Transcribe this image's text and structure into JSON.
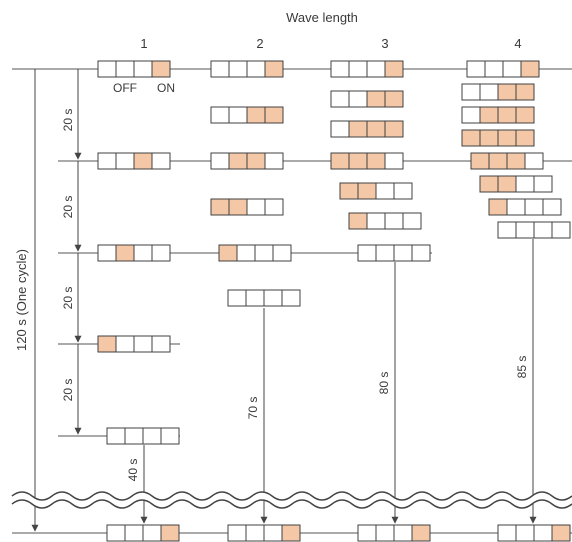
{
  "title": "Wave length",
  "columns": [
    "1",
    "2",
    "3",
    "4"
  ],
  "legend": {
    "off": "OFF",
    "on": "ON"
  },
  "cycle_label": "120 s (One cycle)",
  "step_labels": [
    "20 s",
    "20 s",
    "20 s",
    "20 s"
  ],
  "drop_labels": [
    "40 s",
    "70 s",
    "80 s",
    "85 s"
  ],
  "colors": {
    "on": "#f4c7a6",
    "off": "#ffffff",
    "stroke": "#404040",
    "line": "#555555"
  }
}
